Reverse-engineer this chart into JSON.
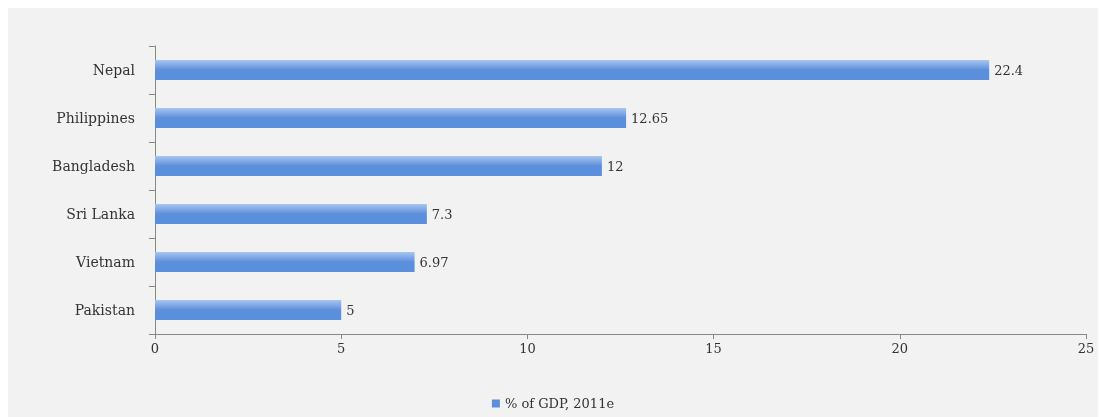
{
  "chart_data": {
    "type": "bar",
    "orientation": "horizontal",
    "categories": [
      "Nepal",
      "Philippines",
      "Bangladesh",
      "Sri Lanka",
      "Vietnam",
      "Pakistan"
    ],
    "series": [
      {
        "name": "% of GDP, 2011e",
        "color": "#5b8fdc",
        "values": [
          22.4,
          12.65,
          12,
          7.3,
          6.97,
          5
        ]
      }
    ],
    "xlim": [
      0,
      25
    ],
    "xticks": [
      0,
      5,
      10,
      15,
      20,
      25
    ],
    "grid": false,
    "legend": "bottom",
    "data_labels": true
  }
}
